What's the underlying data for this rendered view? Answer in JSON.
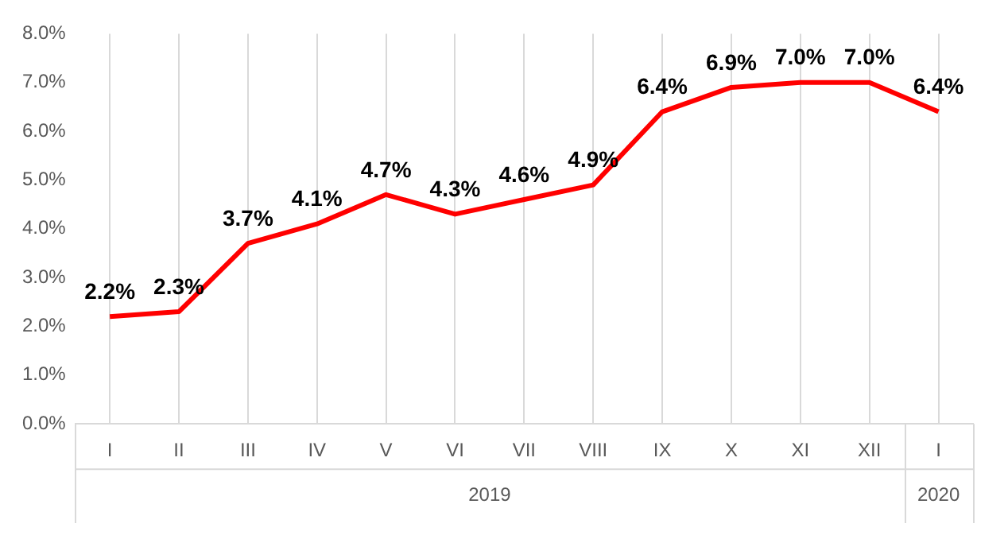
{
  "chart_data": {
    "type": "line",
    "categories": [
      "I",
      "II",
      "III",
      "IV",
      "V",
      "VI",
      "VII",
      "VIII",
      "IX",
      "X",
      "XI",
      "XII",
      "I"
    ],
    "series": [
      {
        "color": "#ff0000",
        "values": [
          2.2,
          2.3,
          3.7,
          4.1,
          4.7,
          4.3,
          4.6,
          4.9,
          6.4,
          6.9,
          7.0,
          7.0,
          6.4
        ],
        "value_labels": [
          "2.2%",
          "2.3%",
          "3.7%",
          "4.1%",
          "4.7%",
          "4.3%",
          "4.6%",
          "4.9%",
          "6.4%",
          "6.9%",
          "7.0%",
          "7.0%",
          "6.4%"
        ]
      }
    ],
    "ylim": [
      0,
      8
    ],
    "yticks": [
      {
        "value": 0,
        "label": "0.0%"
      },
      {
        "value": 1,
        "label": "1.0%"
      },
      {
        "value": 2,
        "label": "2.0%"
      },
      {
        "value": 3,
        "label": "3.0%"
      },
      {
        "value": 4,
        "label": "4.0%"
      },
      {
        "value": 5,
        "label": "5.0%"
      },
      {
        "value": 6,
        "label": "6.0%"
      },
      {
        "value": 7,
        "label": "7.0%"
      },
      {
        "value": 8,
        "label": "8.0%"
      }
    ],
    "grid": "x",
    "legend": false,
    "marker": "none",
    "line_style": "solid",
    "annotations": [
      "2019",
      "2020"
    ]
  }
}
